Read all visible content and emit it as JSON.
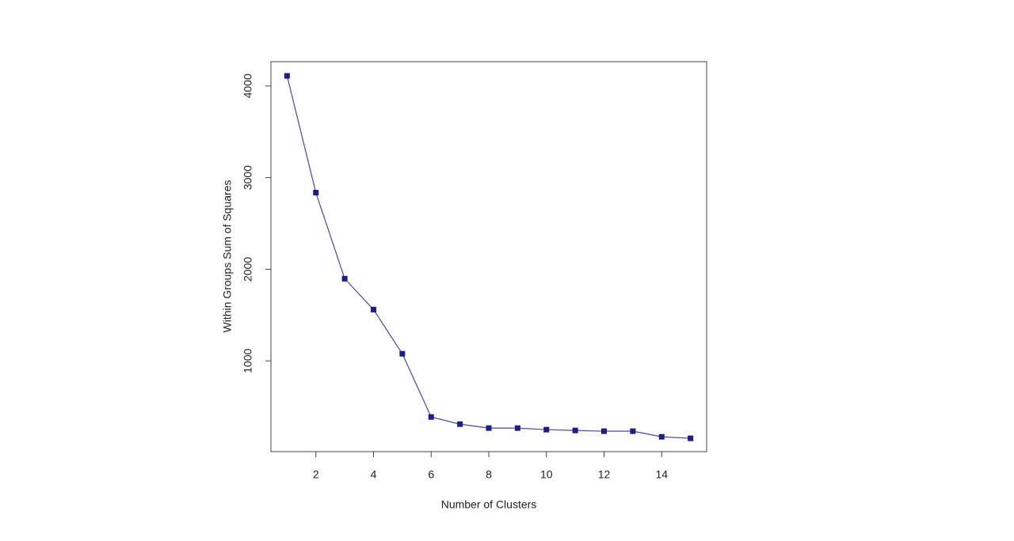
{
  "chart_data": {
    "type": "line",
    "xlabel": "Number of Clusters",
    "ylabel": "Within Groups Sum of Squares",
    "x": [
      1,
      2,
      3,
      4,
      5,
      6,
      7,
      8,
      9,
      10,
      11,
      12,
      13,
      14,
      15
    ],
    "values": [
      4110,
      2836,
      1897,
      1560,
      1078,
      388,
      310,
      267,
      267,
      250,
      241,
      233,
      233,
      172,
      155
    ],
    "color": "#1c1c8e",
    "line_color": "#4848a4",
    "xlim": [
      0.44,
      15.56
    ],
    "ylim": [
      10,
      4265
    ],
    "xticks": [
      2,
      4,
      6,
      8,
      10,
      12,
      14
    ],
    "yticks": [
      1000,
      2000,
      3000,
      4000
    ],
    "grid": false
  }
}
